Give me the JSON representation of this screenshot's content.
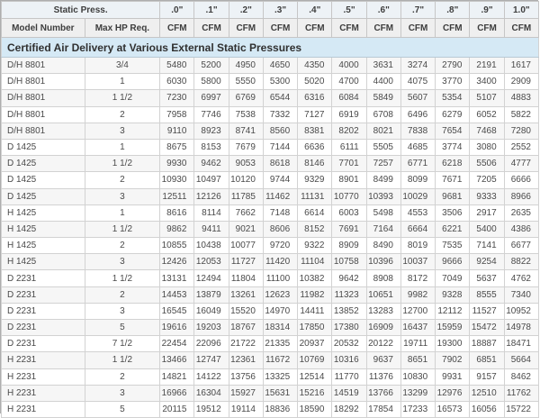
{
  "title": "Certified Air Delivery at Various External Static Pressures",
  "colors": {
    "title_bg": "#d5e9f5",
    "header_press_bg": "#edf2f6",
    "header_cols_bg": "#efefef",
    "row_alt_bg": "#f6f6f6",
    "border": "#c6c6c6",
    "text": "#4a4a4a"
  },
  "table": {
    "static_press_label": "Static Press.",
    "pressure_columns": [
      ".0\"",
      ".1\"",
      ".2\"",
      ".3\"",
      ".4\"",
      ".5\"",
      ".6\"",
      ".7\"",
      ".8\"",
      ".9\"",
      "1.0\""
    ],
    "col_headers": {
      "model": "Model Number",
      "hp": "Max HP Req.",
      "unit": "CFM"
    },
    "rows": [
      {
        "model": "D/H 8801",
        "hp": "3/4",
        "cfm": [
          5480,
          5200,
          4950,
          4650,
          4350,
          4000,
          3631,
          3274,
          2790,
          2191,
          1617
        ]
      },
      {
        "model": "D/H 8801",
        "hp": "1",
        "cfm": [
          6030,
          5800,
          5550,
          5300,
          5020,
          4700,
          4400,
          4075,
          3770,
          3400,
          2909
        ]
      },
      {
        "model": "D/H 8801",
        "hp": "1 1/2",
        "cfm": [
          7230,
          6997,
          6769,
          6544,
          6316,
          6084,
          5849,
          5607,
          5354,
          5107,
          4883
        ]
      },
      {
        "model": "D/H 8801",
        "hp": "2",
        "cfm": [
          7958,
          7746,
          7538,
          7332,
          7127,
          6919,
          6708,
          6496,
          6279,
          6052,
          5822
        ]
      },
      {
        "model": "D/H 8801",
        "hp": "3",
        "cfm": [
          9110,
          8923,
          8741,
          8560,
          8381,
          8202,
          8021,
          7838,
          7654,
          7468,
          7280
        ]
      },
      {
        "model": "D 1425",
        "hp": "1",
        "cfm": [
          8675,
          8153,
          7679,
          7144,
          6636,
          6111,
          5505,
          4685,
          3774,
          3080,
          2552
        ]
      },
      {
        "model": "D 1425",
        "hp": "1 1/2",
        "cfm": [
          9930,
          9462,
          9053,
          8618,
          8146,
          7701,
          7257,
          6771,
          6218,
          5506,
          4777
        ]
      },
      {
        "model": "D 1425",
        "hp": "2",
        "cfm": [
          10930,
          10497,
          10120,
          9744,
          9329,
          8901,
          8499,
          8099,
          7671,
          7205,
          6666
        ]
      },
      {
        "model": "D 1425",
        "hp": "3",
        "cfm": [
          12511,
          12126,
          11785,
          11462,
          11131,
          10770,
          10393,
          10029,
          9681,
          9333,
          8966
        ]
      },
      {
        "model": "H 1425",
        "hp": "1",
        "cfm": [
          8616,
          8114,
          7662,
          7148,
          6614,
          6003,
          5498,
          4553,
          3506,
          2917,
          2635
        ]
      },
      {
        "model": "H 1425",
        "hp": "1 1/2",
        "cfm": [
          9862,
          9411,
          9021,
          8606,
          8152,
          7691,
          7164,
          6664,
          6221,
          5400,
          4386
        ]
      },
      {
        "model": "H 1425",
        "hp": "2",
        "cfm": [
          10855,
          10438,
          10077,
          9720,
          9322,
          8909,
          8490,
          8019,
          7535,
          7141,
          6677
        ]
      },
      {
        "model": "H 1425",
        "hp": "3",
        "cfm": [
          12426,
          12053,
          11727,
          11420,
          11104,
          10758,
          10396,
          10037,
          9666,
          9254,
          8822
        ]
      },
      {
        "model": "D 2231",
        "hp": "1 1/2",
        "cfm": [
          13131,
          12494,
          11804,
          11100,
          10382,
          9642,
          8908,
          8172,
          7049,
          5637,
          4762
        ]
      },
      {
        "model": "D 2231",
        "hp": "2",
        "cfm": [
          14453,
          13879,
          13261,
          12623,
          11982,
          11323,
          10651,
          9982,
          9328,
          8555,
          7340
        ]
      },
      {
        "model": "D 2231",
        "hp": "3",
        "cfm": [
          16545,
          16049,
          15520,
          14970,
          14411,
          13852,
          13283,
          12700,
          12112,
          11527,
          10952
        ]
      },
      {
        "model": "D 2231",
        "hp": "5",
        "cfm": [
          19616,
          19203,
          18767,
          18314,
          17850,
          17380,
          16909,
          16437,
          15959,
          15472,
          14978
        ]
      },
      {
        "model": "D 2231",
        "hp": "7 1/2",
        "cfm": [
          22454,
          22096,
          21722,
          21335,
          20937,
          20532,
          20122,
          19711,
          19300,
          18887,
          18471
        ]
      },
      {
        "model": "H 2231",
        "hp": "1 1/2",
        "cfm": [
          13466,
          12747,
          12361,
          11672,
          10769,
          10316,
          9637,
          8651,
          7902,
          6851,
          5664
        ]
      },
      {
        "model": "H 2231",
        "hp": "2",
        "cfm": [
          14821,
          14122,
          13756,
          13325,
          12514,
          11770,
          11376,
          10830,
          9931,
          9157,
          8462
        ]
      },
      {
        "model": "H 2231",
        "hp": "3",
        "cfm": [
          16966,
          16304,
          15927,
          15631,
          15216,
          14519,
          13766,
          13299,
          12976,
          12510,
          11762
        ]
      },
      {
        "model": "H 2231",
        "hp": "5",
        "cfm": [
          20115,
          19512,
          19114,
          18836,
          18590,
          18292,
          17854,
          17233,
          16573,
          16056,
          15722
        ]
      }
    ]
  }
}
